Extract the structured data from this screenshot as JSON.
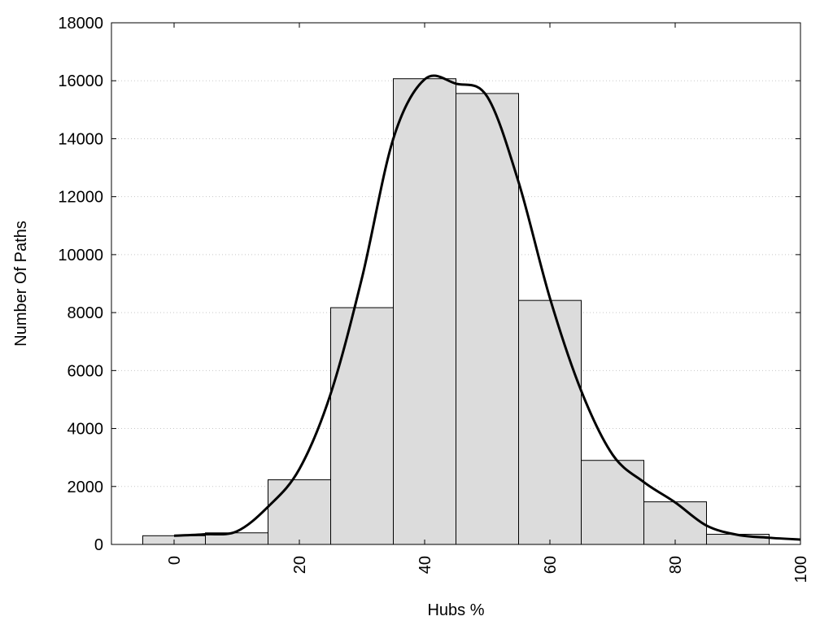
{
  "chart_data": {
    "type": "bar",
    "title": "",
    "xlabel": "Hubs %",
    "ylabel": "Number Of Paths",
    "xlim": [
      -10,
      100
    ],
    "ylim": [
      0,
      18000
    ],
    "x_ticks": [
      0,
      20,
      40,
      60,
      80,
      100
    ],
    "y_ticks": [
      0,
      2000,
      4000,
      6000,
      8000,
      10000,
      12000,
      14000,
      16000,
      18000
    ],
    "grid": "horizontal-dotted",
    "bin_width": 10,
    "bins": [
      0,
      10,
      20,
      30,
      40,
      50,
      60,
      70,
      80,
      90
    ],
    "values": [
      300,
      400,
      2230,
      8170,
      16070,
      15560,
      8420,
      2900,
      1470,
      350
    ],
    "bar_color": "#dcdcdc",
    "curve": {
      "type": "line",
      "color": "#000000",
      "x": [
        0,
        5,
        10,
        15,
        20,
        25,
        30,
        35,
        40,
        45,
        50,
        55,
        60,
        65,
        70,
        75,
        80,
        85,
        90,
        95,
        100
      ],
      "y": [
        300,
        350,
        450,
        1300,
        2600,
        5200,
        9200,
        14000,
        16050,
        15900,
        15450,
        12500,
        8500,
        5300,
        3100,
        2150,
        1450,
        650,
        330,
        230,
        170
      ]
    }
  }
}
